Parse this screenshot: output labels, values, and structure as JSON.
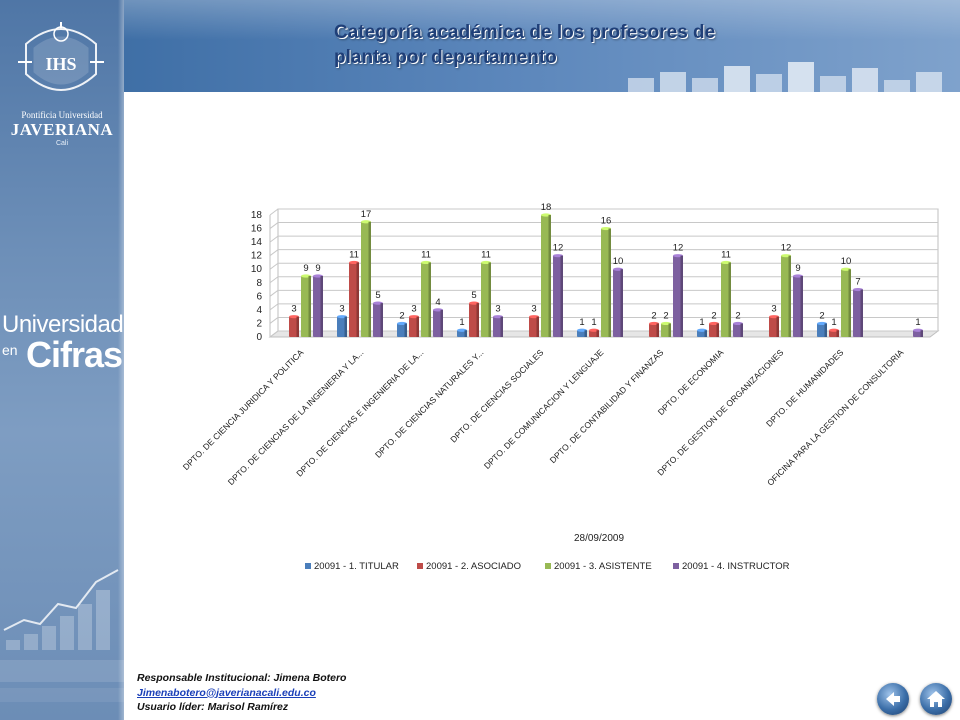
{
  "sidebar": {
    "brand_line1": "Pontificia Universidad",
    "brand_line2": "JAVERIANA",
    "brand_line3": "Cali",
    "universidad": "Universidad",
    "en": "en",
    "cifras": "Cifras",
    "crest_text": "IHS"
  },
  "header": {
    "title_line1": "Categoría académica de los profesores de",
    "title_line2": "planta por departamento"
  },
  "chart_data": {
    "type": "bar",
    "categories": [
      "DPTO. DE CIENCIA JURIDICA Y POLITICA",
      "DPTO. DE CIENCIAS DE LA INGENIERIA Y LA...",
      "DPTO. DE CIENCIAS E INGENIERIA DE LA...",
      "DPTO. DE CIENCIAS NATURALES Y...",
      "DPTO. DE CIENCIAS SOCIALES",
      "DPTO. DE COMUNICACION Y LENGUAJE",
      "DPTO. DE CONTABILIDAD Y FINANZAS",
      "DPTO. DE ECONOMIA",
      "DPTO. DE GESTION DE ORGANIZACIONES",
      "DPTO. DE HUMANIDADES",
      "OFICINA PARA LA GESTION DE CONSULTORIA"
    ],
    "series": [
      {
        "name": "20091 - 1. TITULAR",
        "color": "#4a7ebb",
        "values": [
          null,
          3,
          2,
          1,
          null,
          1,
          null,
          1,
          null,
          2,
          null
        ]
      },
      {
        "name": "20091 - 2. ASOCIADO",
        "color": "#be4b48",
        "values": [
          3,
          11,
          3,
          5,
          3,
          1,
          2,
          2,
          3,
          1,
          null
        ]
      },
      {
        "name": "20091 - 3. ASISTENTE",
        "color": "#98b954",
        "values": [
          9,
          17,
          11,
          11,
          18,
          16,
          2,
          11,
          12,
          10,
          null
        ]
      },
      {
        "name": "20091 - 4. INSTRUCTOR",
        "color": "#7d60a0",
        "values": [
          9,
          5,
          4,
          3,
          12,
          10,
          12,
          2,
          9,
          7,
          1
        ]
      }
    ],
    "yticks": [
      0,
      2,
      4,
      6,
      8,
      10,
      12,
      14,
      16,
      18
    ],
    "ylim": [
      0,
      18
    ],
    "grid": true,
    "xlabel": "28/09/2009",
    "legend": "bottom"
  },
  "footer": {
    "line1": "Responsable Institucional: Jimena Botero",
    "email": "Jimenabotero@javerianacali.edu.co",
    "line3": "Usuario líder: Marisol Ramírez"
  },
  "nav": {
    "back": "back-arrow-icon",
    "home": "home-icon"
  }
}
